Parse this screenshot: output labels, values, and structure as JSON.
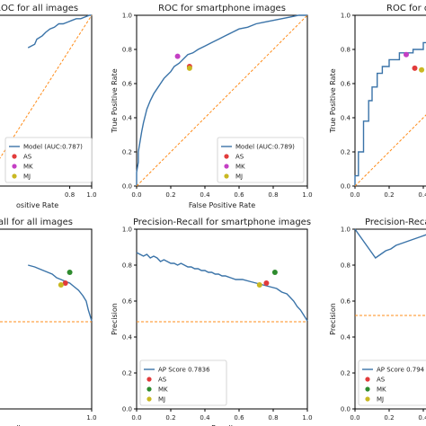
{
  "colors": {
    "curve": "#3a73a8",
    "chance": "#ff8c1a",
    "AS": "#e23b3b",
    "MK": "#c43fc4",
    "MK_pr": "#2e8b2e",
    "MJ": "#c9b822"
  },
  "chart_data": [
    {
      "id": "roc-all",
      "type": "line",
      "title": "ROC for all images",
      "xlabel": "False Positive Rate",
      "ylabel": "",
      "xlim": [
        0,
        1
      ],
      "ylim": [
        0,
        1
      ],
      "xticks": [
        "0.8",
        "1.0"
      ],
      "yticks": [],
      "legend": {
        "placement": "bottom-right",
        "entries": [
          "Model (AUC:0.787)",
          "AS",
          "MK",
          "MJ"
        ]
      },
      "series": [
        {
          "name": "Model (AUC:0.787)",
          "x": [
            0.42,
            0.48,
            0.5,
            0.55,
            0.58,
            0.62,
            0.66,
            0.7,
            0.74,
            0.78,
            0.82,
            0.86,
            0.9,
            0.94,
            0.98,
            1.0
          ],
          "y": [
            0.81,
            0.83,
            0.86,
            0.88,
            0.9,
            0.92,
            0.93,
            0.95,
            0.95,
            0.96,
            0.97,
            0.98,
            0.98,
            0.99,
            1.0,
            1.0
          ]
        },
        {
          "name": "chance",
          "x": [
            0,
            1
          ],
          "y": [
            0,
            1
          ]
        }
      ],
      "points": []
    },
    {
      "id": "roc-smartphone",
      "type": "line",
      "title": "ROC for smartphone images",
      "xlabel": "False Positive Rate",
      "ylabel": "True Positive Rate",
      "xlim": [
        0,
        1
      ],
      "ylim": [
        0,
        1
      ],
      "xticks": [
        "0.0",
        "0.2",
        "0.4",
        "0.6",
        "0.8",
        "1.0"
      ],
      "yticks": [
        "0.0",
        "0.2",
        "0.4",
        "0.6",
        "0.8",
        "1.0"
      ],
      "legend": {
        "placement": "bottom-right",
        "entries": [
          "Model (AUC:0.789)",
          "AS",
          "MK",
          "MJ"
        ]
      },
      "series": [
        {
          "name": "Model (AUC:0.789)",
          "x": [
            0,
            0,
            0.01,
            0.01,
            0.02,
            0.03,
            0.04,
            0.05,
            0.06,
            0.08,
            0.1,
            0.12,
            0.14,
            0.16,
            0.18,
            0.2,
            0.22,
            0.25,
            0.28,
            0.3,
            0.33,
            0.36,
            0.4,
            0.44,
            0.48,
            0.52,
            0.56,
            0.6,
            0.65,
            0.7,
            0.75,
            0.8,
            0.85,
            0.9,
            0.95,
            1.0
          ],
          "y": [
            0,
            0.08,
            0.14,
            0.2,
            0.26,
            0.32,
            0.37,
            0.41,
            0.45,
            0.5,
            0.54,
            0.57,
            0.6,
            0.63,
            0.65,
            0.67,
            0.7,
            0.72,
            0.75,
            0.77,
            0.78,
            0.8,
            0.82,
            0.84,
            0.86,
            0.88,
            0.9,
            0.92,
            0.93,
            0.95,
            0.96,
            0.97,
            0.98,
            0.99,
            1.0,
            1.0
          ]
        },
        {
          "name": "chance",
          "x": [
            0,
            1
          ],
          "y": [
            0,
            1
          ]
        }
      ],
      "points": [
        {
          "name": "MK",
          "x": 0.24,
          "y": 0.76
        },
        {
          "name": "AS",
          "x": 0.31,
          "y": 0.7
        },
        {
          "name": "MJ",
          "x": 0.31,
          "y": 0.69
        }
      ]
    },
    {
      "id": "roc-right",
      "type": "line",
      "title": "ROC for d",
      "xlabel": "",
      "ylabel": "True Positive Rate",
      "xlim": [
        0,
        1
      ],
      "ylim": [
        0,
        1
      ],
      "xticks": [
        "0.0",
        "0.2",
        "0.4"
      ],
      "yticks": [
        "0.0",
        "0.2",
        "0.4",
        "0.6",
        "0.8",
        "1.0"
      ],
      "legend": {
        "placement": "bottom-right",
        "entries": []
      },
      "series": [
        {
          "name": "model",
          "x": [
            0,
            0,
            0.02,
            0.02,
            0.05,
            0.05,
            0.08,
            0.08,
            0.1,
            0.1,
            0.13,
            0.13,
            0.16,
            0.16,
            0.2,
            0.2,
            0.26,
            0.26,
            0.34,
            0.34,
            0.4,
            0.4,
            0.46,
            0.46,
            0.52
          ],
          "y": [
            0,
            0.06,
            0.06,
            0.2,
            0.2,
            0.38,
            0.38,
            0.5,
            0.5,
            0.58,
            0.58,
            0.66,
            0.66,
            0.7,
            0.7,
            0.74,
            0.74,
            0.78,
            0.78,
            0.8,
            0.8,
            0.84,
            0.84,
            0.9,
            0.9
          ]
        },
        {
          "name": "chance",
          "x": [
            0,
            1
          ],
          "y": [
            0,
            1
          ]
        }
      ],
      "points": [
        {
          "name": "MK",
          "x": 0.3,
          "y": 0.77
        },
        {
          "name": "AS",
          "x": 0.35,
          "y": 0.69
        },
        {
          "name": "MJ",
          "x": 0.39,
          "y": 0.68
        }
      ]
    },
    {
      "id": "pr-all",
      "type": "line",
      "title": "all for all images",
      "xlabel": "Recall",
      "ylabel": "",
      "xlim": [
        0,
        1
      ],
      "ylim": [
        0,
        1
      ],
      "xticks": [
        "1.0"
      ],
      "yticks": [],
      "legend": {
        "placement": "bottom-right",
        "entries": []
      },
      "series": [
        {
          "name": "model",
          "x": [
            0.42,
            0.48,
            0.52,
            0.56,
            0.6,
            0.64,
            0.68,
            0.72,
            0.76,
            0.8,
            0.84,
            0.88,
            0.92,
            0.95,
            0.97,
            1.0
          ],
          "y": [
            0.8,
            0.79,
            0.78,
            0.77,
            0.76,
            0.75,
            0.73,
            0.72,
            0.71,
            0.7,
            0.68,
            0.66,
            0.63,
            0.6,
            0.55,
            0.49
          ]
        },
        {
          "name": "chance",
          "x": [
            0,
            1
          ],
          "y": [
            0.485,
            0.485
          ]
        }
      ],
      "points": [
        {
          "name": "MK",
          "x": 0.8,
          "y": 0.76
        },
        {
          "name": "AS",
          "x": 0.76,
          "y": 0.7
        },
        {
          "name": "MJ",
          "x": 0.72,
          "y": 0.69
        }
      ]
    },
    {
      "id": "pr-smartphone",
      "type": "line",
      "title": "Precision-Recall for smartphone images",
      "xlabel": "Recall",
      "ylabel": "Precision",
      "xlim": [
        0,
        1
      ],
      "ylim": [
        0,
        1
      ],
      "xticks": [
        "0.0",
        "0.2",
        "0.4",
        "0.6",
        "0.8",
        "1.0"
      ],
      "yticks": [
        "0.0",
        "0.2",
        "0.4",
        "0.6",
        "0.8",
        "1.0"
      ],
      "legend": {
        "placement": "bottom-left",
        "entries": [
          "AP Score 0.7836",
          "AS",
          "MK",
          "MJ"
        ]
      },
      "series": [
        {
          "name": "AP Score 0.7836",
          "x": [
            0,
            0.02,
            0.04,
            0.06,
            0.08,
            0.1,
            0.12,
            0.14,
            0.16,
            0.18,
            0.2,
            0.22,
            0.24,
            0.26,
            0.28,
            0.3,
            0.32,
            0.34,
            0.36,
            0.38,
            0.4,
            0.42,
            0.44,
            0.46,
            0.48,
            0.5,
            0.52,
            0.55,
            0.58,
            0.62,
            0.66,
            0.7,
            0.74,
            0.78,
            0.82,
            0.85,
            0.88,
            0.9,
            0.92,
            0.94,
            0.96,
            0.98,
            1.0
          ],
          "y": [
            0.87,
            0.86,
            0.85,
            0.86,
            0.84,
            0.85,
            0.84,
            0.82,
            0.83,
            0.82,
            0.81,
            0.81,
            0.8,
            0.81,
            0.8,
            0.79,
            0.79,
            0.78,
            0.78,
            0.77,
            0.77,
            0.76,
            0.76,
            0.75,
            0.75,
            0.74,
            0.74,
            0.73,
            0.72,
            0.72,
            0.71,
            0.7,
            0.69,
            0.68,
            0.67,
            0.65,
            0.64,
            0.62,
            0.6,
            0.57,
            0.55,
            0.52,
            0.49
          ]
        },
        {
          "name": "chance",
          "x": [
            0,
            1
          ],
          "y": [
            0.485,
            0.485
          ]
        }
      ],
      "points": [
        {
          "name": "MK",
          "x": 0.81,
          "y": 0.76
        },
        {
          "name": "AS",
          "x": 0.76,
          "y": 0.7
        },
        {
          "name": "MJ",
          "x": 0.72,
          "y": 0.69
        }
      ]
    },
    {
      "id": "pr-right",
      "type": "line",
      "title": "Precision-Recall",
      "xlabel": "",
      "ylabel": "Precision",
      "xlim": [
        0,
        1
      ],
      "ylim": [
        0,
        1
      ],
      "xticks": [
        "0.0",
        "0.2",
        "0.4"
      ],
      "yticks": [
        "0.0",
        "0.2",
        "0.4",
        "0.6",
        "0.8",
        "1.0"
      ],
      "legend": {
        "placement": "bottom-left",
        "entries": [
          "AP Score 0.794",
          "AS",
          "MK",
          "MJ"
        ]
      },
      "series": [
        {
          "name": "AP Score 0.794",
          "x": [
            0,
            0.03,
            0.06,
            0.09,
            0.12,
            0.15,
            0.18,
            0.21,
            0.24,
            0.27,
            0.3,
            0.33,
            0.36,
            0.39,
            0.42,
            0.45,
            0.48,
            0.52
          ],
          "y": [
            1.0,
            0.96,
            0.92,
            0.88,
            0.84,
            0.86,
            0.88,
            0.89,
            0.91,
            0.92,
            0.93,
            0.94,
            0.95,
            0.96,
            0.97,
            0.98,
            0.99,
            1.0
          ]
        },
        {
          "name": "chance",
          "x": [
            0,
            1
          ],
          "y": [
            0.52,
            0.52
          ]
        }
      ],
      "points": []
    }
  ],
  "cropped_labels": {
    "roc_all_xlabel": "ositive Rate",
    "pr_all_title": "all for all images",
    "pr_all_xlabel": "ecall",
    "roc_right_title": "ROC for d",
    "pr_right_title": "Precision-Recall",
    "pr_right_legend": "AP Score 0.794"
  }
}
